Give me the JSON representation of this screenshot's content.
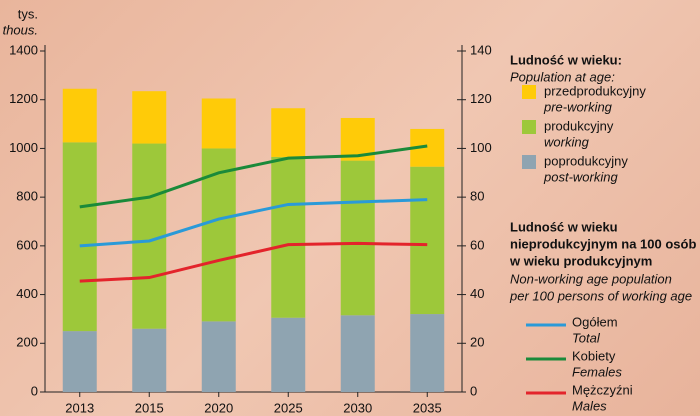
{
  "chart_data": {
    "type": "bar",
    "stacked": true,
    "y_unit": "tys.",
    "y_unit_en": "thous.",
    "categories": [
      "2013",
      "2015",
      "2020",
      "2025",
      "2030",
      "2035"
    ],
    "series": [
      {
        "name": "poprodukcyjny",
        "name_en": "post-working",
        "color": "#8fa4b1",
        "values": [
          250,
          260,
          290,
          305,
          315,
          320
        ]
      },
      {
        "name": "produkcyjny",
        "name_en": "working",
        "color": "#9dc83a",
        "values": [
          775,
          760,
          710,
          660,
          635,
          605
        ]
      },
      {
        "name": "przedprodukcyjny",
        "name_en": "pre-working",
        "color": "#ffcb08",
        "values": [
          220,
          215,
          205,
          200,
          175,
          155
        ]
      },
      {
        "name": "Ogółem",
        "name_en": "Total",
        "type": "line",
        "axis": "y2",
        "color": "#2a9ad8",
        "values": [
          60,
          62,
          71,
          77,
          78,
          79
        ]
      },
      {
        "name": "Kobiety",
        "name_en": "Females",
        "type": "line",
        "axis": "y2",
        "color": "#1a8a3a",
        "values": [
          76,
          80,
          90,
          96,
          97,
          101
        ]
      },
      {
        "name": "Mężczyźni",
        "name_en": "Males",
        "type": "line",
        "axis": "y2",
        "color": "#e3242b",
        "values": [
          45.5,
          47,
          54,
          60.5,
          61,
          60.5
        ]
      }
    ],
    "legend_title": "Ludność w wieku:",
    "legend_subtitle": "Population at age:",
    "legend2_title": [
      "Ludność w wieku",
      "nieprodukcyjnym na 100 osób",
      "w wieku produkcyjnym"
    ],
    "legend2_subtitle": [
      "Non-working age population",
      "per 100 persons of working age"
    ],
    "ylim": [
      0,
      1400
    ],
    "yticks": [
      0,
      200,
      400,
      600,
      800,
      1000,
      1200,
      1400
    ],
    "y2lim": [
      0,
      140
    ],
    "y2ticks": [
      0,
      20,
      40,
      60,
      80,
      100,
      120,
      140
    ]
  }
}
